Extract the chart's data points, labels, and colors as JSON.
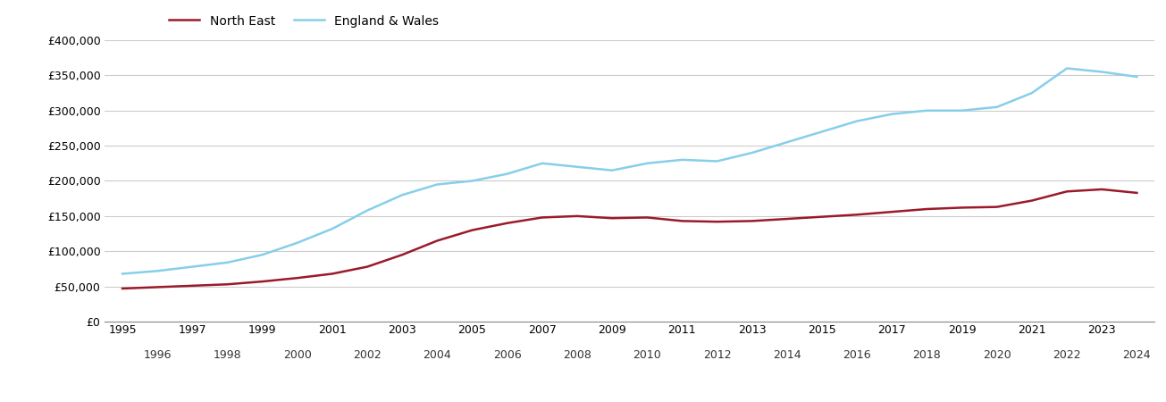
{
  "north_east": {
    "years": [
      1995,
      1996,
      1997,
      1998,
      1999,
      2000,
      2001,
      2002,
      2003,
      2004,
      2005,
      2006,
      2007,
      2008,
      2009,
      2010,
      2011,
      2012,
      2013,
      2014,
      2015,
      2016,
      2017,
      2018,
      2019,
      2020,
      2021,
      2022,
      2023,
      2024
    ],
    "values": [
      47000,
      49000,
      51000,
      53000,
      57000,
      62000,
      68000,
      78000,
      95000,
      115000,
      130000,
      140000,
      148000,
      150000,
      147000,
      148000,
      143000,
      142000,
      143000,
      146000,
      149000,
      152000,
      156000,
      160000,
      162000,
      163000,
      172000,
      185000,
      188000,
      183000
    ]
  },
  "england_wales": {
    "years": [
      1995,
      1996,
      1997,
      1998,
      1999,
      2000,
      2001,
      2002,
      2003,
      2004,
      2005,
      2006,
      2007,
      2008,
      2009,
      2010,
      2011,
      2012,
      2013,
      2014,
      2015,
      2016,
      2017,
      2018,
      2019,
      2020,
      2021,
      2022,
      2023,
      2024
    ],
    "values": [
      68000,
      72000,
      78000,
      84000,
      95000,
      112000,
      132000,
      158000,
      180000,
      195000,
      200000,
      210000,
      225000,
      220000,
      215000,
      225000,
      230000,
      228000,
      240000,
      255000,
      270000,
      285000,
      295000,
      300000,
      300000,
      305000,
      325000,
      360000,
      355000,
      348000
    ]
  },
  "north_east_color": "#9b1a2a",
  "england_wales_color": "#87CEEB",
  "north_east_label": "North East",
  "england_wales_label": "England & Wales",
  "ylim": [
    0,
    400000
  ],
  "ytick_values": [
    0,
    50000,
    100000,
    150000,
    200000,
    250000,
    300000,
    350000,
    400000
  ],
  "background_color": "#ffffff",
  "grid_color": "#cccccc",
  "line_width": 1.8
}
